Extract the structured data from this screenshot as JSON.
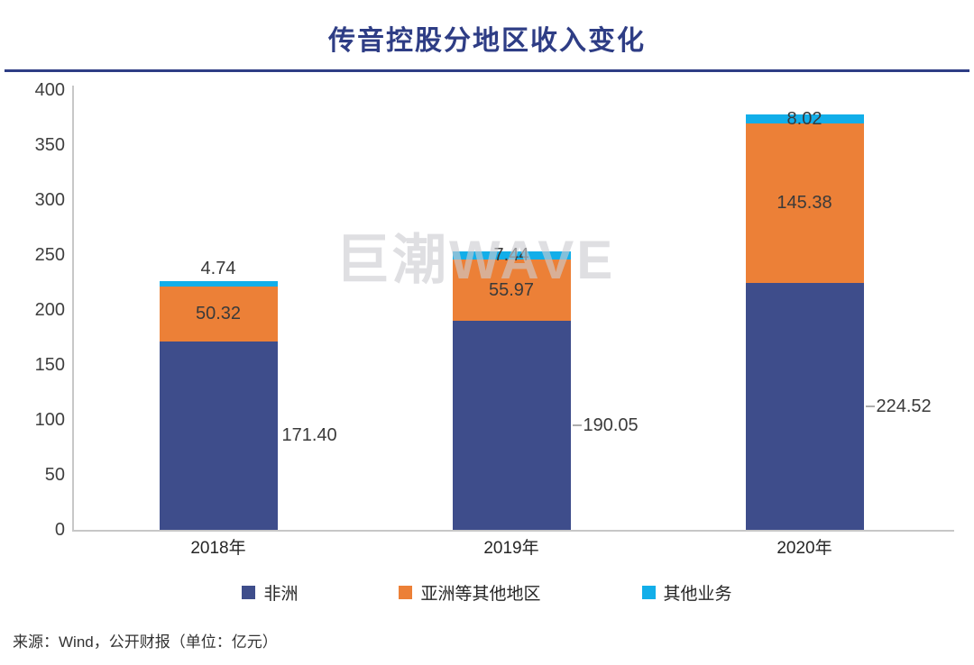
{
  "page": {
    "title": "传音控股分地区收入变化",
    "watermark": "巨潮WAVE",
    "source_note": "来源：Wind，公开财报（单位：亿元）"
  },
  "colors": {
    "title_navy": "#2E3D85",
    "africa_blue": "#3E4D8B",
    "asia_orange": "#EC8037",
    "other_cyan": "#12AEE9",
    "axis_gray": "#C7C7C7",
    "label_text": "#3A3A3A",
    "watermark_gray": "#CBCBD1"
  },
  "chart_data": {
    "type": "bar",
    "stacked": true,
    "title": "传音控股分地区收入变化",
    "unit": "亿元",
    "categories": [
      "2018年",
      "2019年",
      "2020年"
    ],
    "series": [
      {
        "name": "非洲",
        "color": "#3E4D8B",
        "values": [
          171.4,
          190.05,
          224.52
        ],
        "label_position": "outside-right"
      },
      {
        "name": "亚洲等其他地区",
        "color": "#EC8037",
        "values": [
          50.32,
          55.97,
          145.38
        ],
        "label_position": "inside-center"
      },
      {
        "name": "其他业务",
        "color": "#12AEE9",
        "values": [
          4.74,
          7.44,
          8.02
        ],
        "label_position": "segment-top"
      }
    ],
    "totals": [
      226.46,
      253.46,
      377.92
    ],
    "value_label_format": "2-decimals",
    "xlabel": "",
    "ylabel": "",
    "ylim": [
      0,
      400
    ],
    "yticks": [
      0,
      50,
      100,
      150,
      200,
      250,
      300,
      350,
      400
    ],
    "grid": false,
    "legend_position": "bottom",
    "legend": [
      "非洲",
      "亚洲等其他地区",
      "其他业务"
    ]
  }
}
